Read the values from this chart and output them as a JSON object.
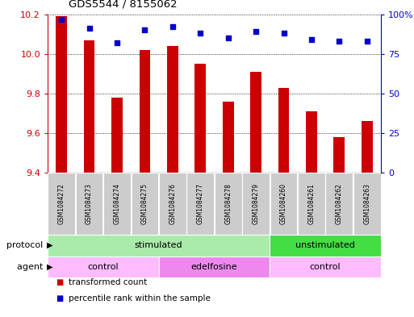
{
  "title": "GDS5544 / 8155062",
  "samples": [
    "GSM1084272",
    "GSM1084273",
    "GSM1084274",
    "GSM1084275",
    "GSM1084276",
    "GSM1084277",
    "GSM1084278",
    "GSM1084279",
    "GSM1084260",
    "GSM1084261",
    "GSM1084262",
    "GSM1084263"
  ],
  "bar_values": [
    10.19,
    10.07,
    9.78,
    10.02,
    10.04,
    9.95,
    9.76,
    9.91,
    9.83,
    9.71,
    9.58,
    9.66
  ],
  "dot_values": [
    97,
    91,
    82,
    90,
    92,
    88,
    85,
    89,
    88,
    84,
    83,
    83
  ],
  "ylim_left": [
    9.4,
    10.2
  ],
  "ylim_right": [
    0,
    100
  ],
  "yticks_left": [
    9.4,
    9.6,
    9.8,
    10.0,
    10.2
  ],
  "yticks_right": [
    0,
    25,
    50,
    75,
    100
  ],
  "ytick_labels_right": [
    "0",
    "25",
    "50",
    "75",
    "100%"
  ],
  "bar_color": "#cc0000",
  "dot_color": "#0000cc",
  "protocol_groups": [
    {
      "label": "stimulated",
      "start": 0,
      "end": 8,
      "color": "#aaeaaa"
    },
    {
      "label": "unstimulated",
      "start": 8,
      "end": 12,
      "color": "#44dd44"
    }
  ],
  "agent_groups": [
    {
      "label": "control",
      "start": 0,
      "end": 4,
      "color": "#ffbbff"
    },
    {
      "label": "edelfosine",
      "start": 4,
      "end": 8,
      "color": "#ee88ee"
    },
    {
      "label": "control",
      "start": 8,
      "end": 12,
      "color": "#ffbbff"
    }
  ],
  "legend_items": [
    {
      "label": "transformed count",
      "color": "#cc0000"
    },
    {
      "label": "percentile rank within the sample",
      "color": "#0000cc"
    }
  ],
  "protocol_label": "protocol",
  "agent_label": "agent",
  "label_bg_color": "#cccccc",
  "bar_width": 0.4
}
